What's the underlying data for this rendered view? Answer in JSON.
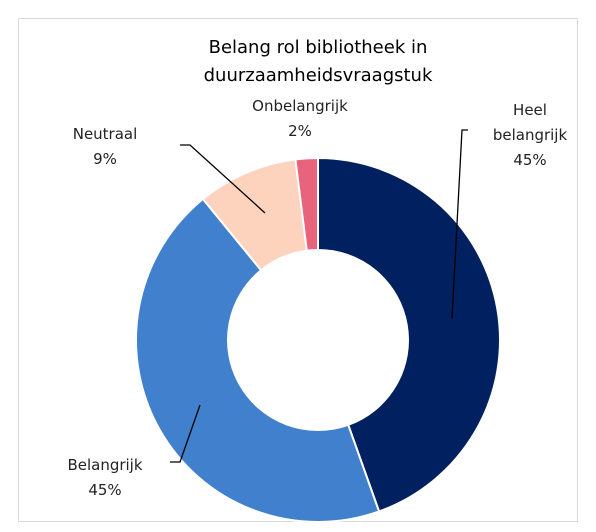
{
  "chart_data": {
    "type": "donut",
    "title": "Belang rol bibliotheek in duurzaamheidsvraagstuk",
    "categories": [
      "Heel belangrijk",
      "Belangrijk",
      "Neutraal",
      "Onbelangrijk"
    ],
    "values": [
      45,
      45,
      9,
      2
    ],
    "value_labels": [
      "45%",
      "45%",
      "9%",
      "2%"
    ],
    "colors": [
      "#002060",
      "#4180cc",
      "#fdd3be",
      "#e8637c"
    ]
  }
}
